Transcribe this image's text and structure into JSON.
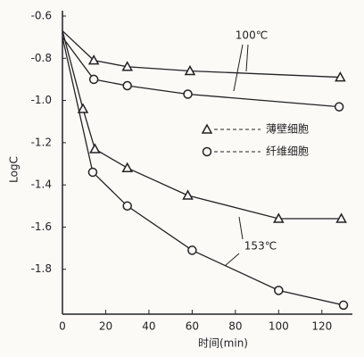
{
  "chart_data": {
    "type": "line",
    "x_label": "时间(min)",
    "y_label": "LogC",
    "xlim": [
      0,
      130
    ],
    "xticks": [
      0,
      20,
      40,
      60,
      80,
      100,
      120
    ],
    "ylim": [
      -2.0,
      -0.6
    ],
    "yticks": [
      -0.6,
      -0.8,
      {
        "value": -1.0,
        "label": "-1.0"
      },
      -1.2,
      -1.4,
      -1.6,
      -1.8
    ],
    "annotations": [
      "100℃",
      "153℃"
    ],
    "series": [
      {
        "name": "薄壁细胞",
        "marker": "triangle",
        "color": "#222222",
        "x": [
          0,
          14.5,
          30,
          59,
          128.5
        ],
        "values": [
          -0.67,
          -0.81,
          -0.84,
          -0.86,
          -0.89
        ]
      },
      {
        "name": "纤维细胞",
        "marker": "circle",
        "color": "#222222",
        "x": [
          0,
          14.5,
          30,
          58,
          128
        ],
        "values": [
          -0.7,
          -0.9,
          -0.93,
          -0.97,
          -1.03
        ]
      },
      {
        "marker": "triangle",
        "color": "#222222",
        "x": [
          0,
          9.5,
          15,
          30,
          58,
          100,
          129
        ],
        "values": [
          -0.67,
          -1.04,
          -1.23,
          -1.32,
          -1.45,
          -1.56,
          -1.56
        ]
      },
      {
        "marker": "circle",
        "color": "#222222",
        "x": [
          0,
          14,
          30,
          60,
          100,
          130
        ],
        "values": [
          -0.7,
          -1.34,
          -1.5,
          -1.71,
          -1.9,
          -1.97
        ]
      }
    ]
  }
}
